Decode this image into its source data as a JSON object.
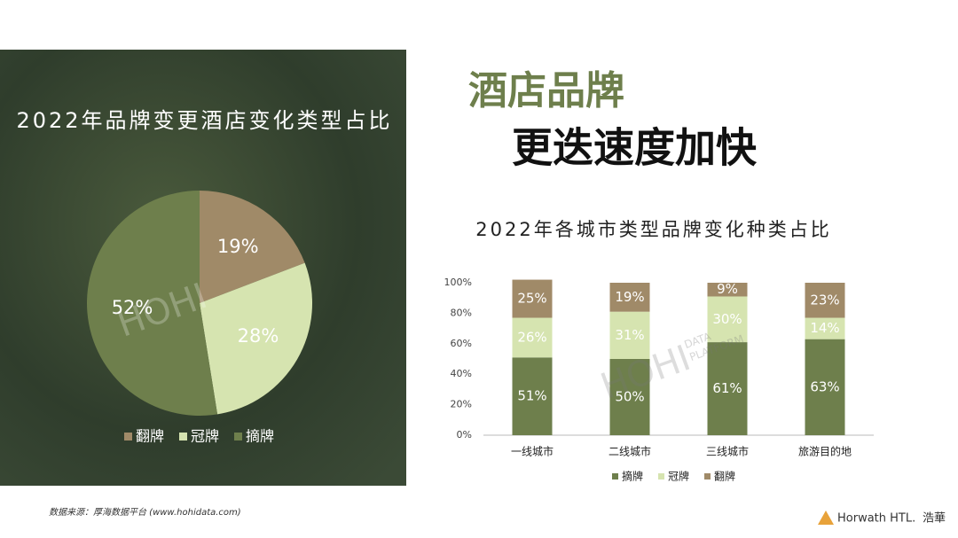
{
  "header": {
    "title_line1": "酒店品牌",
    "title_line2": "更迭速度加快"
  },
  "watermark": {
    "big": "HOHI",
    "small1": "DATA",
    "small2": "PLATFORM"
  },
  "chart_data": [
    {
      "type": "pie",
      "title": "2022年品牌变更酒店变化类型占比",
      "categories": [
        "翻牌",
        "冠牌",
        "摘牌"
      ],
      "values": [
        19,
        28,
        52
      ],
      "value_labels": [
        "19%",
        "28%",
        "52%"
      ],
      "colors": [
        "#a08a68",
        "#d6e4b0",
        "#6e7f4c"
      ]
    },
    {
      "type": "stacked_bar",
      "title": "2022年各城市类型品牌变化种类占比",
      "categories": [
        "一线城市",
        "二线城市",
        "三线城市",
        "旅游目的地"
      ],
      "series": [
        {
          "name": "摘牌",
          "color": "#6e7f4c",
          "values": [
            51,
            50,
            61,
            63
          ],
          "value_labels": [
            "51%",
            "50%",
            "61%",
            "63%"
          ]
        },
        {
          "name": "冠牌",
          "color": "#d6e4b0",
          "values": [
            26,
            31,
            30,
            14
          ],
          "value_labels": [
            "26%",
            "31%",
            "30%",
            "14%"
          ]
        },
        {
          "name": "翻牌",
          "color": "#a08a68",
          "values": [
            25,
            19,
            9,
            23
          ],
          "value_labels": [
            "25%",
            "19%",
            "9%",
            "23%"
          ]
        }
      ],
      "ylim": [
        0,
        100
      ],
      "yticks": [
        {
          "value": 0,
          "label": "0%"
        },
        {
          "value": 20,
          "label": "20%"
        },
        {
          "value": 40,
          "label": "40%"
        },
        {
          "value": 60,
          "label": "60%"
        },
        {
          "value": 80,
          "label": "80%"
        },
        {
          "value": 100,
          "label": "100%"
        }
      ]
    }
  ],
  "footer": {
    "source": "数据来源：厚海数据平台 (www.hohidata.com)",
    "brand": "Horwath HTL.",
    "brand_cn": "浩華"
  }
}
